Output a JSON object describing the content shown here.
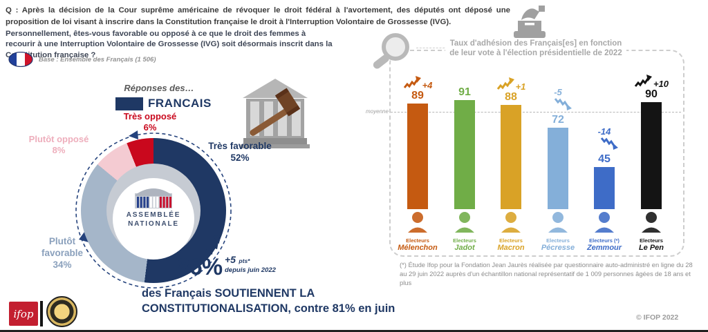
{
  "header": {
    "q1": "Q : Après la décision de la Cour suprême américaine de révoquer le droit fédéral à l'avortement, des députés ont déposé une proposition de loi visant à inscrire dans la Constitution française le droit à l'Interruption Volontaire de Grossesse (IVG).",
    "q2": "Personnellement, êtes-vous favorable ou opposé à ce que le droit des femmes à recourir à une Interruption Volontaire de Grossesse (IVG) soit désormais inscrit dans la Constitution française ?",
    "base": "Base : Ensemble des Français (1 506)"
  },
  "legend": {
    "intro": "Réponses des…",
    "group": "FRANCAIS",
    "swatch_color": "#1f3864"
  },
  "center_logo": {
    "line1": "ASSEMBLÉE",
    "line2": "NATIONALE"
  },
  "stat": {
    "value": "86%",
    "delta": "+5",
    "delta_unit": "pts*",
    "since": "depuis juin 2022"
  },
  "statement": {
    "line1": "des Français SOUTIENNENT LA",
    "line2": "CONSTITUTIONALISATION, contre 81% en juin"
  },
  "panel": {
    "title_line1": "Taux d'adhésion des Français[es] en fonction",
    "title_line2": "de leur vote à l'élection présidentielle de 2022",
    "average_label": "moyenne",
    "footnote": "(*) Étude Ifop pour la Fondation Jean Jaurès réalisée par questionnaire auto-administré en ligne du 28 au 29 juin 2022 auprès d'un échantillon national représentatif de 1 009 personnes âgées de 18 ans et plus"
  },
  "footer": {
    "copyright": "© IFOP 2022",
    "ifop_logo_text": "ifop"
  },
  "chart_data": [
    {
      "type": "pie",
      "title": "Réponses des… FRANCAIS",
      "segments": [
        {
          "label": "Très favorable",
          "value": 52,
          "pct": "52%",
          "color": "#1f3864"
        },
        {
          "label": "Plutôt favorable",
          "value": 34,
          "pct": "34%",
          "color": "#a5b6c9"
        },
        {
          "label": "Plutôt opposé",
          "value": 8,
          "pct": "8%",
          "color": "#f4cbd2"
        },
        {
          "label": "Très opposé",
          "value": 6,
          "pct": "6%",
          "color": "#c9081d"
        }
      ],
      "layout": {
        "start": "top",
        "direction": "clockwise",
        "donut": true
      }
    },
    {
      "type": "bar",
      "title": "Taux d'adhésion des Français[es] en fonction de leur vote à l'élection présidentielle de 2022",
      "categories": [
        "Mélenchon",
        "Jadot",
        "Macron",
        "Pécresse",
        "Zemmour",
        "Le Pen"
      ],
      "elector_prefix": [
        "Electeurs",
        "Electeurs",
        "Electeurs",
        "Electeurs",
        "Electeurs (*)",
        "Electeurs"
      ],
      "values": [
        89,
        91,
        88,
        72,
        45,
        90
      ],
      "deltas": [
        "+4",
        "",
        "+1",
        "-5",
        "-14",
        "+10"
      ],
      "directions": [
        "up",
        "",
        "up",
        "down",
        "down",
        "up"
      ],
      "colors": [
        "#c55a11",
        "#70ad47",
        "#d9a226",
        "#84afd9",
        "#3e6cc7",
        "#141414"
      ],
      "average_label": "moyenne",
      "average_value": 86,
      "ylim": [
        0,
        100
      ]
    }
  ]
}
